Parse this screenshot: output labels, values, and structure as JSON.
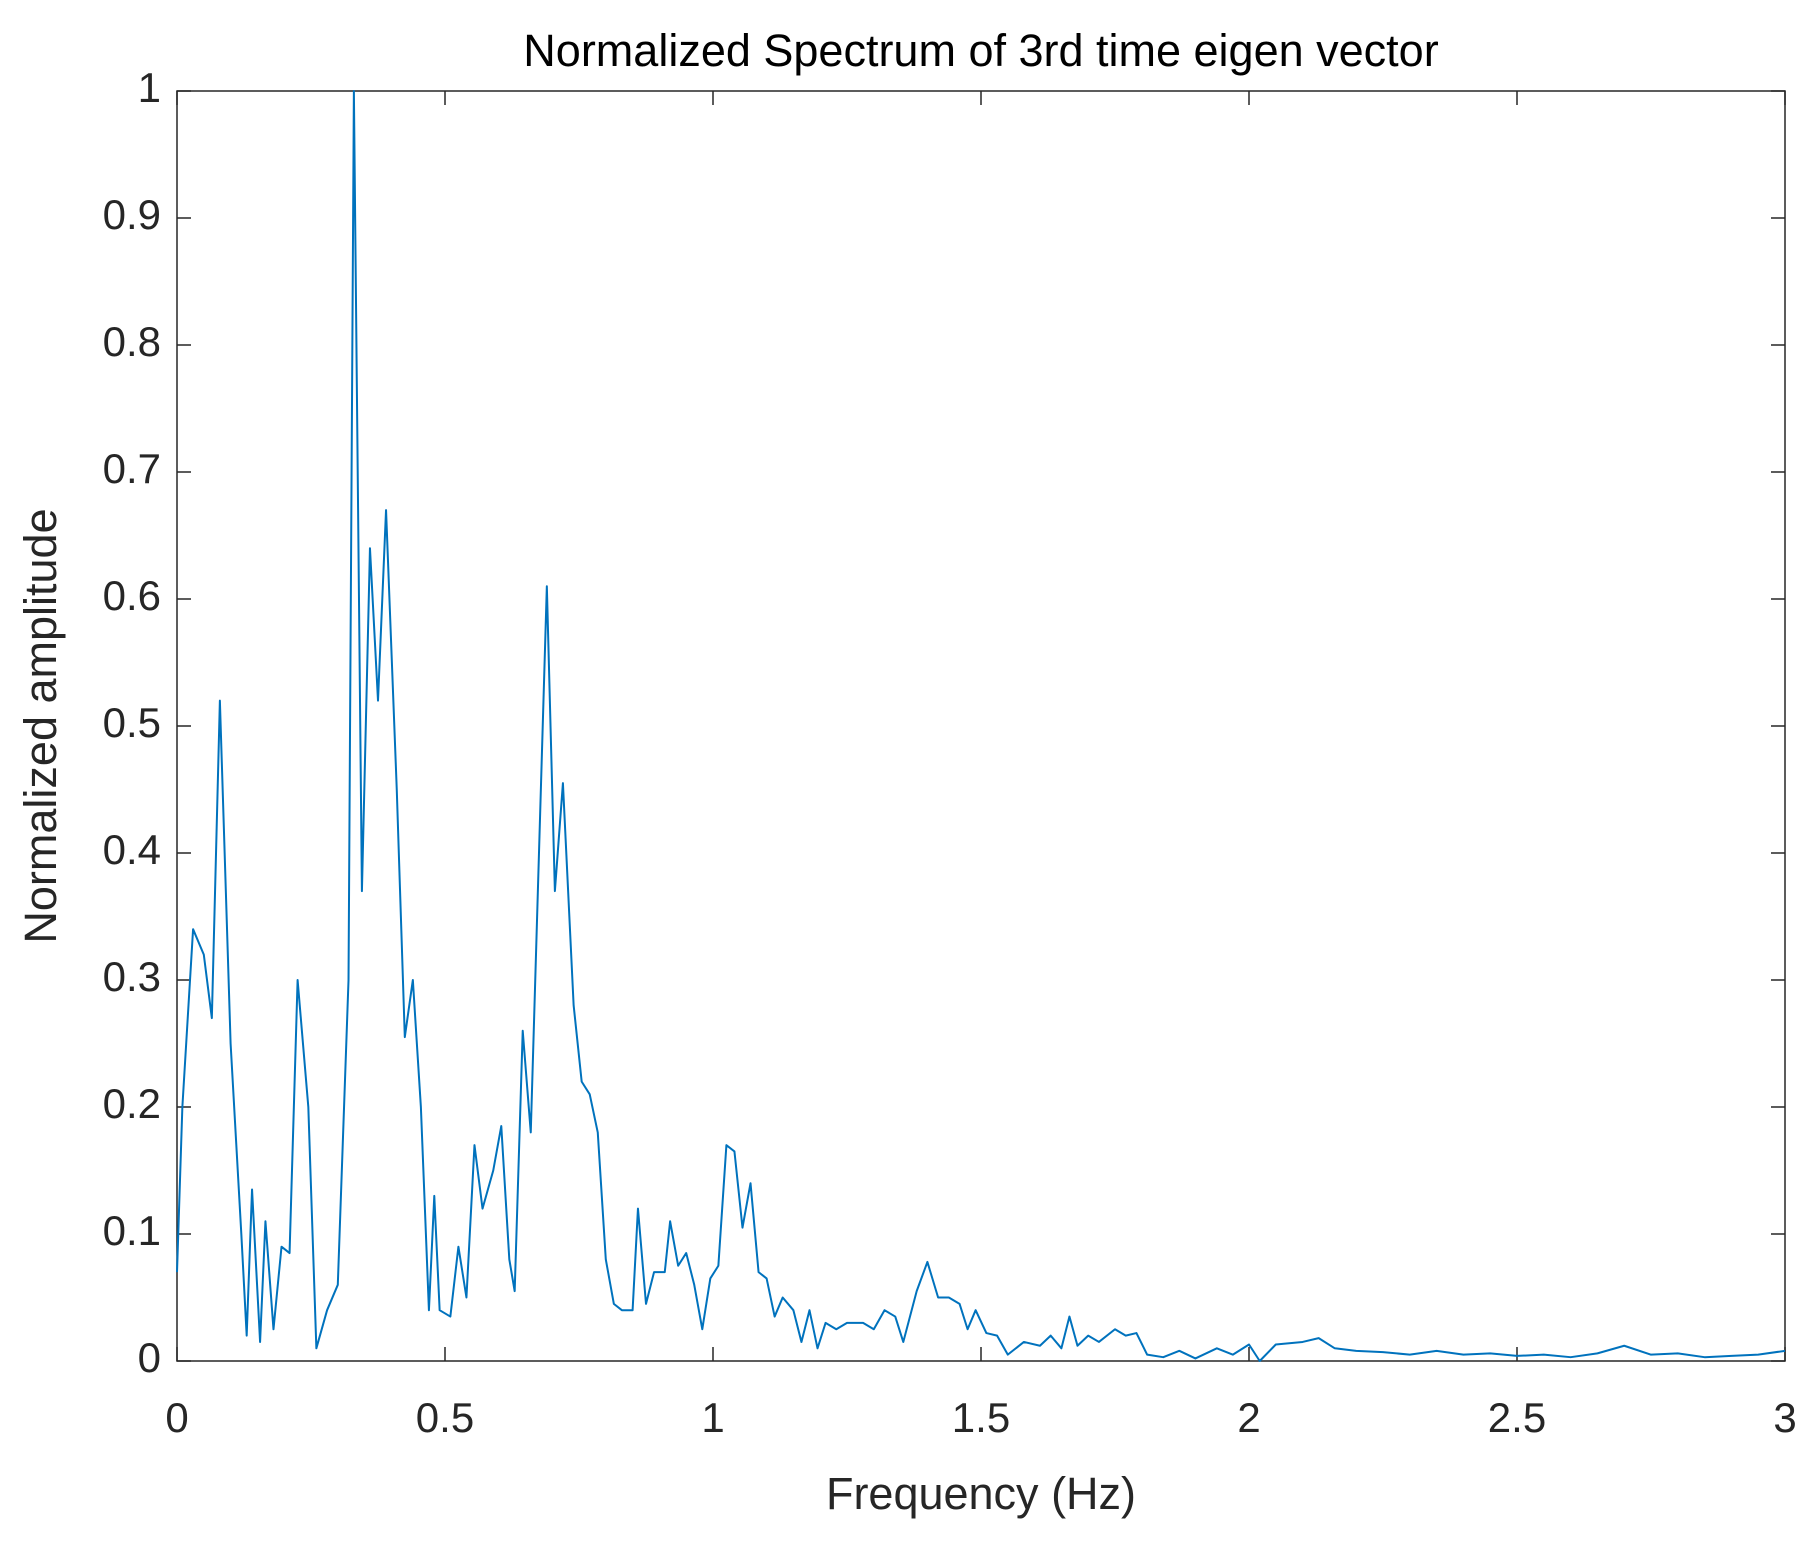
{
  "chart_data": {
    "type": "line",
    "title": "Normalized Spectrum of 3rd time eigen vector",
    "xlabel": "Frequency (Hz)",
    "ylabel": "Normalized amplitude",
    "xlim": [
      0,
      3
    ],
    "ylim": [
      0,
      1
    ],
    "xticks": [
      0,
      0.5,
      1,
      1.5,
      2,
      2.5,
      3
    ],
    "yticks": [
      0,
      0.1,
      0.2,
      0.3,
      0.4,
      0.5,
      0.6,
      0.7,
      0.8,
      0.9,
      1
    ],
    "grid": false,
    "series": [
      {
        "name": "spectrum",
        "color": "#0072bd",
        "x": [
          0,
          0.01,
          0.03,
          0.05,
          0.065,
          0.08,
          0.1,
          0.12,
          0.13,
          0.14,
          0.155,
          0.165,
          0.18,
          0.195,
          0.21,
          0.225,
          0.245,
          0.26,
          0.28,
          0.3,
          0.32,
          0.33,
          0.345,
          0.36,
          0.375,
          0.39,
          0.41,
          0.425,
          0.44,
          0.455,
          0.47,
          0.48,
          0.49,
          0.51,
          0.525,
          0.54,
          0.555,
          0.57,
          0.59,
          0.605,
          0.62,
          0.63,
          0.645,
          0.66,
          0.69,
          0.705,
          0.72,
          0.74,
          0.755,
          0.77,
          0.785,
          0.8,
          0.815,
          0.83,
          0.85,
          0.86,
          0.875,
          0.89,
          0.91,
          0.92,
          0.935,
          0.95,
          0.965,
          0.98,
          0.995,
          1.01,
          1.025,
          1.04,
          1.055,
          1.07,
          1.085,
          1.1,
          1.115,
          1.13,
          1.15,
          1.165,
          1.18,
          1.195,
          1.21,
          1.23,
          1.25,
          1.28,
          1.3,
          1.32,
          1.34,
          1.355,
          1.38,
          1.4,
          1.42,
          1.44,
          1.46,
          1.475,
          1.49,
          1.51,
          1.53,
          1.55,
          1.58,
          1.61,
          1.63,
          1.65,
          1.665,
          1.68,
          1.7,
          1.72,
          1.75,
          1.77,
          1.79,
          1.81,
          1.84,
          1.87,
          1.9,
          1.94,
          1.97,
          2.0,
          2.02,
          2.05,
          2.1,
          2.13,
          2.16,
          2.2,
          2.25,
          2.3,
          2.35,
          2.4,
          2.45,
          2.5,
          2.55,
          2.6,
          2.65,
          2.7,
          2.75,
          2.8,
          2.85,
          2.9,
          2.95,
          3.0
        ],
        "values": [
          0.07,
          0.2,
          0.34,
          0.32,
          0.27,
          0.52,
          0.25,
          0.1,
          0.02,
          0.135,
          0.015,
          0.11,
          0.025,
          0.09,
          0.085,
          0.3,
          0.2,
          0.01,
          0.04,
          0.06,
          0.3,
          1.0,
          0.37,
          0.64,
          0.52,
          0.67,
          0.45,
          0.255,
          0.3,
          0.2,
          0.04,
          0.13,
          0.04,
          0.035,
          0.09,
          0.05,
          0.17,
          0.12,
          0.15,
          0.185,
          0.08,
          0.055,
          0.26,
          0.18,
          0.61,
          0.37,
          0.455,
          0.28,
          0.22,
          0.21,
          0.18,
          0.08,
          0.045,
          0.04,
          0.04,
          0.12,
          0.045,
          0.07,
          0.07,
          0.11,
          0.075,
          0.085,
          0.06,
          0.025,
          0.065,
          0.075,
          0.17,
          0.165,
          0.105,
          0.14,
          0.07,
          0.065,
          0.035,
          0.05,
          0.04,
          0.015,
          0.04,
          0.01,
          0.03,
          0.025,
          0.03,
          0.03,
          0.025,
          0.04,
          0.035,
          0.015,
          0.055,
          0.078,
          0.05,
          0.05,
          0.045,
          0.025,
          0.04,
          0.022,
          0.02,
          0.005,
          0.015,
          0.012,
          0.02,
          0.01,
          0.035,
          0.012,
          0.02,
          0.015,
          0.025,
          0.02,
          0.022,
          0.005,
          0.003,
          0.008,
          0.002,
          0.01,
          0.005,
          0.013,
          0.0,
          0.013,
          0.015,
          0.018,
          0.01,
          0.008,
          0.007,
          0.005,
          0.008,
          0.005,
          0.006,
          0.004,
          0.005,
          0.003,
          0.006,
          0.012,
          0.005,
          0.006,
          0.003,
          0.004,
          0.005,
          0.008
        ]
      }
    ]
  }
}
